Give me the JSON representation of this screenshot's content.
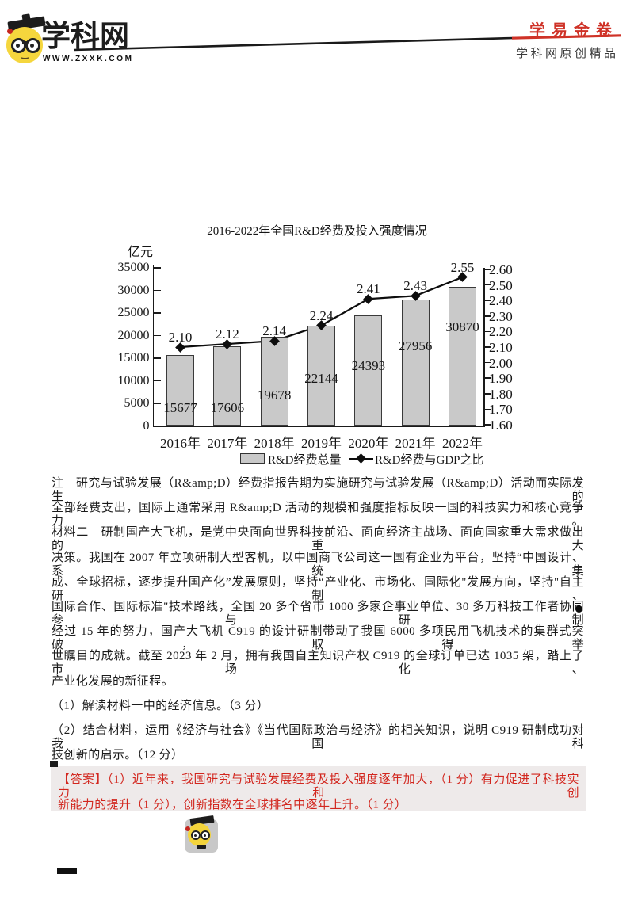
{
  "header": {
    "brand_name": "学科网",
    "brand_url": "WWW.ZXXK.COM",
    "right_title": "学易金卷",
    "right_subtitle": "学科网原创精品",
    "brand_red": "#cf3227"
  },
  "chart_data": {
    "type": "bar",
    "title": "2016-2022年全国R&D经费及投入强度情况",
    "unit_label": "亿元",
    "categories": [
      "2016年",
      "2017年",
      "2018年",
      "2019年",
      "2020年",
      "2021年",
      "2022年"
    ],
    "series": [
      {
        "name": "R&D经费总量",
        "type": "bar",
        "values": [
          15677,
          17606,
          19678,
          22144,
          24393,
          27956,
          30870
        ]
      },
      {
        "name": "R&D经费与GDP之比",
        "type": "line",
        "values": [
          2.1,
          2.12,
          2.14,
          2.24,
          2.41,
          2.43,
          2.55
        ]
      }
    ],
    "bar_value_labels": [
      "15677",
      "17606",
      "19678",
      "22144",
      "24393",
      "27956",
      "30870"
    ],
    "line_value_labels": [
      "2.10",
      "2.12",
      "2.14",
      "2.24",
      "2.41",
      "2.43",
      "2.55"
    ],
    "left_axis": {
      "label": "亿元",
      "min": 0,
      "max": 35000,
      "step": 5000,
      "ticks": [
        "0",
        "5000",
        "10000",
        "15000",
        "20000",
        "25000",
        "30000",
        "35000"
      ]
    },
    "right_axis": {
      "min": 1.6,
      "max": 2.6,
      "step": 0.1,
      "ticks": [
        "1.60",
        "1.70",
        "1.80",
        "1.90",
        "2.00",
        "2.10",
        "2.20",
        "2.30",
        "2.40",
        "2.50",
        "2.60"
      ]
    },
    "legend": [
      {
        "label": "R&D经费总量",
        "symbol": "bar-swatch"
      },
      {
        "label": "R&D经费与GDP之比",
        "symbol": "line-diamond"
      }
    ],
    "grid": false,
    "legend_position": "bottom",
    "bar_color": "#c9c9c9",
    "line_color": "#0d0d0d",
    "bar_label_y_hint": [
      505,
      505,
      489,
      468,
      452,
      427,
      403
    ]
  },
  "body": {
    "lines": [
      {
        "text": "注　研究与试验发展（R&amp;D）经费指报告期为实施研究与试验发展（R&amp;D）活动而实际发生的",
        "justify": true
      },
      {
        "text": "全部经费支出，国际上通常采用 R&amp;D 活动的规模和强度指标反映一国的科技实力和核心竞争力。",
        "justify": true
      },
      {
        "text": "材料二　研制国产大飞机，是党中央面向世界科技前沿、面向经济主战场、面向国家重大需求做出的重大",
        "justify": true
      },
      {
        "text": "决策。我国在 2007 年立项研制大型客机，以中国商飞公司这一国有企业为平台，坚持“中国设计、系统集",
        "justify": true
      },
      {
        "text": "成、全球招标，逐步提升国产化”发展原则，坚持“产业化、市场化、国际化\"发展方向，坚持\"自主研制、",
        "justify": true
      },
      {
        "text": "国际合作、国际标准\"技术路线，全国 20 多个省市 1000 多家企事业单位、30 多万科技工作者协同参与研制",
        "justify": true
      },
      {
        "text": "经过 15 年的努力，国产大飞机 C919 的设计研制带动了我国 6000 多项民用飞机技术的集群式突破，取得举",
        "justify": true
      },
      {
        "text": "世瞩目的成就。截至 2023 年 2 月，拥有我国自主知识产权 C919 的全球订单已达 1035 架，踏上了市场化、",
        "justify": true
      },
      {
        "text": "产业化发展的新征程。",
        "justify": false
      },
      {
        "text": "（1）解读材料一中的经济信息。（3 分）",
        "justify": false
      },
      {
        "text": "（2）结合材料，运用《经济与社会》《当代国际政治与经济》的相关知识，说明 C919 研制成功对我国科",
        "justify": true
      },
      {
        "text": "技创新的启示。（12 分）",
        "justify": false
      }
    ]
  },
  "answer": {
    "box_color": "#eeeaea",
    "text_color": "#d2261e",
    "lines": [
      {
        "text": "【答案】（1）近年来，我国研究与试验发展经费及投入强度逐年加大，（1 分）有力促进了科技实力和创",
        "justify": true
      },
      {
        "text": "新能力的提升（1 分），创新指数在全球排名中逐年上升。（1 分）",
        "justify": false
      }
    ]
  }
}
